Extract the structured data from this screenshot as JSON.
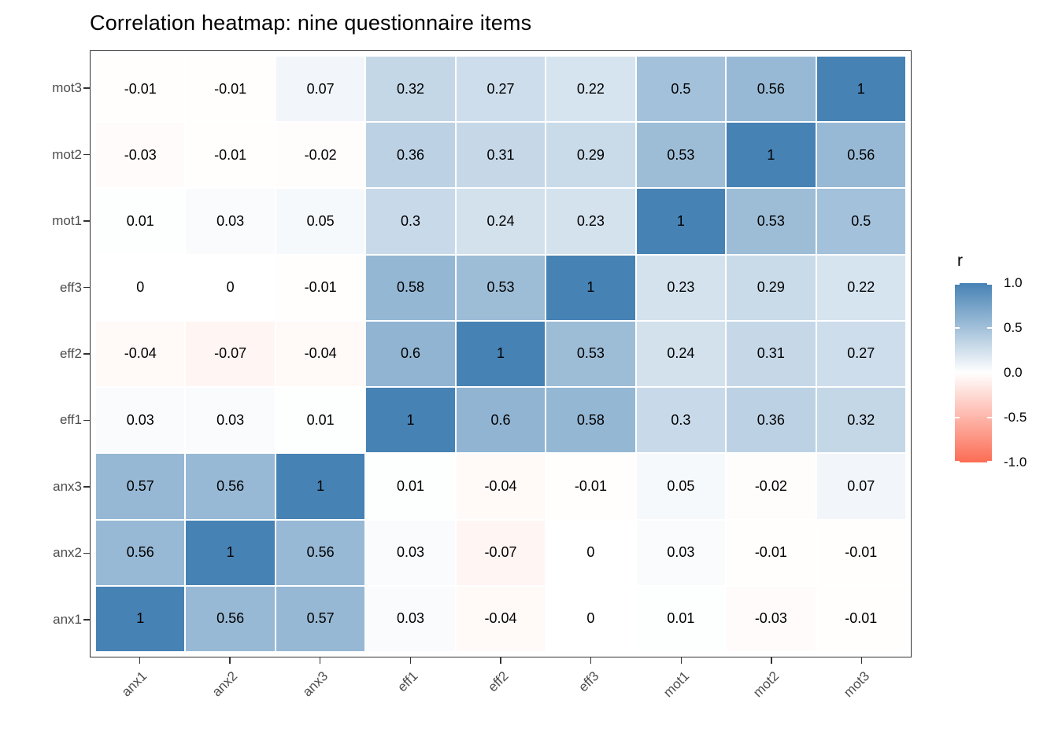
{
  "chart_data": {
    "type": "heatmap",
    "title": "Correlation heatmap: nine questionnaire items",
    "xlabel": "",
    "ylabel": "",
    "x_categories": [
      "anx1",
      "anx2",
      "anx3",
      "eff1",
      "eff2",
      "eff3",
      "mot1",
      "mot2",
      "mot3"
    ],
    "y_categories_top_to_bottom": [
      "mot3",
      "mot2",
      "mot1",
      "eff3",
      "eff2",
      "eff1",
      "anx3",
      "anx2",
      "anx1"
    ],
    "matrix_rows_top_to_bottom": [
      [
        -0.01,
        -0.01,
        0.07,
        0.32,
        0.27,
        0.22,
        0.5,
        0.56,
        1
      ],
      [
        -0.03,
        -0.01,
        -0.02,
        0.36,
        0.31,
        0.29,
        0.53,
        1,
        0.56
      ],
      [
        0.01,
        0.03,
        0.05,
        0.3,
        0.24,
        0.23,
        1,
        0.53,
        0.5
      ],
      [
        0,
        0,
        -0.01,
        0.58,
        0.53,
        1,
        0.23,
        0.29,
        0.22
      ],
      [
        -0.04,
        -0.07,
        -0.04,
        0.6,
        1,
        0.53,
        0.24,
        0.31,
        0.27
      ],
      [
        0.03,
        0.03,
        0.01,
        1,
        0.6,
        0.58,
        0.3,
        0.36,
        0.32
      ],
      [
        0.57,
        0.56,
        1,
        0.01,
        -0.04,
        -0.01,
        0.05,
        -0.02,
        0.07
      ],
      [
        0.56,
        1,
        0.56,
        0.03,
        -0.07,
        0,
        0.03,
        -0.01,
        -0.01
      ],
      [
        1,
        0.56,
        0.57,
        0.03,
        -0.04,
        0,
        0.01,
        -0.03,
        -0.01
      ]
    ],
    "value_domain": [
      -1,
      1
    ],
    "grid": false,
    "colors": {
      "low": "#FC6C54",
      "mid": "#FFFFFF",
      "high": "#4682B4"
    },
    "legend": {
      "title": "r",
      "position": "right",
      "ticks": [
        {
          "label": "1.0",
          "value": 1.0
        },
        {
          "label": "0.5",
          "value": 0.5
        },
        {
          "label": "0.0",
          "value": 0.0
        },
        {
          "label": "-0.5",
          "value": -0.5
        },
        {
          "label": "-1.0",
          "value": -1.0
        }
      ]
    }
  }
}
